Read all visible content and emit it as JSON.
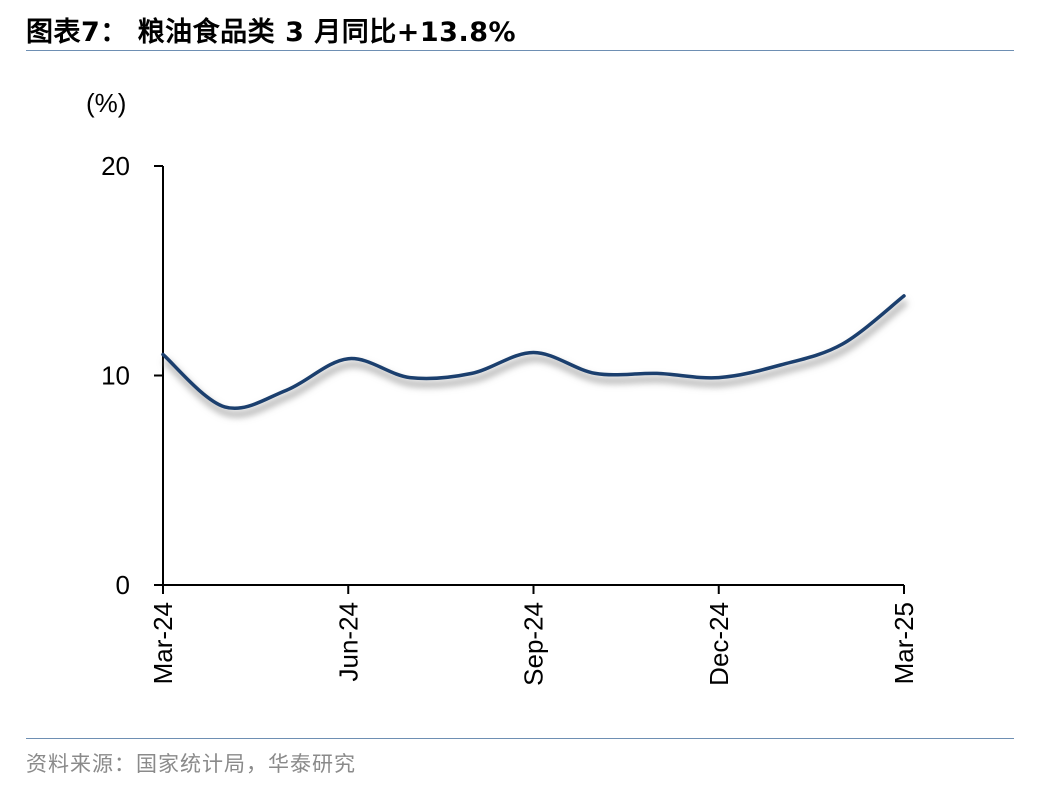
{
  "title": "图表7：  粮油食品类 3 月同比+13.8%",
  "source": "资料来源：国家统计局，华泰研究",
  "chart_data": {
    "type": "line",
    "unit_label": "(%)",
    "ylim": [
      0,
      20
    ],
    "yticks": [
      "0",
      "10",
      "20"
    ],
    "xtick_labels": [
      "Mar-24",
      "Jun-24",
      "Sep-24",
      "Dec-24",
      "Mar-25"
    ],
    "x": [
      "Mar-24",
      "Apr-24",
      "May-24",
      "Jun-24",
      "Jul-24",
      "Aug-24",
      "Sep-24",
      "Oct-24",
      "Nov-24",
      "Dec-24",
      "Jan-25",
      "Feb-25",
      "Mar-25"
    ],
    "series": [
      {
        "color": "#1b3f6e",
        "values": [
          11.0,
          8.5,
          9.3,
          10.8,
          9.9,
          10.1,
          11.1,
          10.1,
          10.1,
          9.9,
          10.5,
          11.5,
          13.8
        ]
      }
    ],
    "grid": false,
    "legend": "none"
  }
}
